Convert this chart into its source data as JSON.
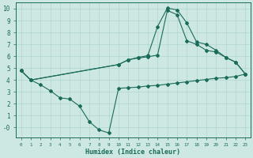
{
  "xlabel": "Humidex (Indice chaleur)",
  "bg_color": "#cde8e2",
  "grid_color": "#b0d8d0",
  "line_color": "#1a6b5a",
  "xlim": [
    -0.5,
    23.5
  ],
  "ylim": [
    -0.8,
    10.5
  ],
  "yticks": [
    0,
    1,
    2,
    3,
    4,
    5,
    6,
    7,
    8,
    9,
    10
  ],
  "ytick_labels": [
    "-0",
    "1",
    "2",
    "3",
    "4",
    "5",
    "6",
    "7",
    "8",
    "9",
    "10"
  ],
  "xticks": [
    0,
    1,
    2,
    3,
    4,
    5,
    6,
    7,
    8,
    9,
    10,
    11,
    12,
    13,
    14,
    15,
    16,
    17,
    18,
    19,
    20,
    21,
    22,
    23
  ],
  "line1_x": [
    0,
    1,
    2,
    3,
    4,
    5,
    6,
    7,
    8,
    9,
    10,
    11,
    12,
    13,
    14,
    15,
    16,
    17,
    18,
    19,
    20,
    21,
    22,
    23
  ],
  "line1_y": [
    4.8,
    4.0,
    3.6,
    3.1,
    2.5,
    2.4,
    1.8,
    0.5,
    -0.2,
    -0.45,
    3.3,
    3.35,
    3.4,
    3.5,
    3.55,
    3.65,
    3.75,
    3.85,
    3.95,
    4.05,
    4.15,
    4.2,
    4.3,
    4.5
  ],
  "line2_x": [
    0,
    1,
    10,
    11,
    12,
    13,
    14,
    15,
    16,
    17,
    18,
    19,
    20,
    21,
    22,
    23
  ],
  "line2_y": [
    4.8,
    4.0,
    5.3,
    5.7,
    5.9,
    6.05,
    8.5,
    10.05,
    9.9,
    8.8,
    7.2,
    7.0,
    6.5,
    5.9,
    5.5,
    4.5
  ],
  "line3_x": [
    0,
    1,
    10,
    11,
    12,
    13,
    14,
    15,
    16,
    17,
    18,
    19,
    20,
    21,
    22,
    23
  ],
  "line3_y": [
    4.8,
    4.0,
    5.3,
    5.7,
    5.85,
    5.95,
    6.1,
    9.85,
    9.5,
    7.3,
    7.0,
    6.5,
    6.35,
    5.9,
    5.5,
    4.5
  ]
}
